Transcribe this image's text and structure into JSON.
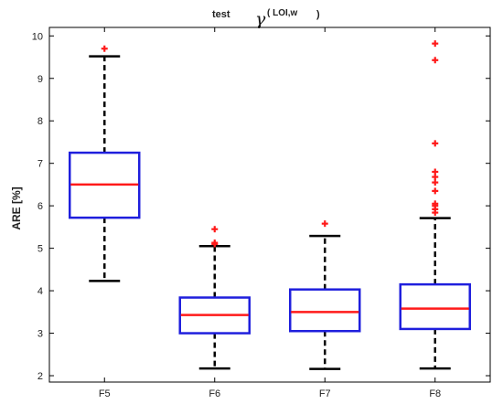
{
  "chart_data": {
    "type": "boxplot",
    "title": {
      "prefix": "test",
      "symbol": "γ",
      "subscript": "( LOI,w",
      "suffix": ")"
    },
    "xlabel": "",
    "ylabel": "ARE [%]",
    "ylim": [
      1.85,
      10.2
    ],
    "yticks": [
      "2",
      "3",
      "4",
      "5",
      "6",
      "7",
      "8",
      "9",
      "10"
    ],
    "grid": false,
    "colors": {
      "box": "#1f1fdd",
      "median": "#ff1a1a",
      "whisker": "#000000",
      "outlier": "#ff1a1a"
    },
    "categories": [
      "F5",
      "F6",
      "F7",
      "F8"
    ],
    "boxes": [
      {
        "label": "F5",
        "whisker_low": 4.23,
        "q1": 5.72,
        "median": 6.5,
        "q3": 7.25,
        "whisker_high": 9.52,
        "outliers": [
          9.7
        ]
      },
      {
        "label": "F6",
        "whisker_low": 2.17,
        "q1": 3.0,
        "median": 3.43,
        "q3": 3.84,
        "whisker_high": 5.05,
        "outliers": [
          5.1,
          5.13,
          5.45
        ]
      },
      {
        "label": "F7",
        "whisker_low": 2.16,
        "q1": 3.05,
        "median": 3.5,
        "q3": 4.03,
        "whisker_high": 5.29,
        "outliers": [
          5.58
        ]
      },
      {
        "label": "F8",
        "whisker_low": 2.17,
        "q1": 3.1,
        "median": 3.58,
        "q3": 4.15,
        "whisker_high": 5.71,
        "outliers": [
          5.84,
          5.92,
          6.0,
          6.05,
          6.35,
          6.55,
          6.68,
          6.8,
          7.47,
          9.43,
          9.82
        ]
      }
    ]
  }
}
